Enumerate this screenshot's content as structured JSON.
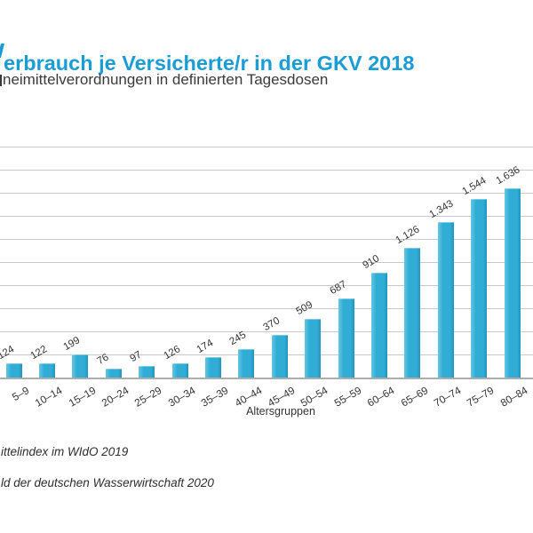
{
  "header": {
    "title": "erbrauch je Versicherte/r in der GKV 2018",
    "subtitle": "neimittelverordnungen in definierten Tagesdosen"
  },
  "chart_data": {
    "type": "bar",
    "title": "erbrauch je Versicherte/r in der GKV 2018",
    "subtitle": "neimittelverordnungen in definierten Tagesdosen",
    "categories": [
      "5–9",
      "10–14",
      "15–19",
      "20–24",
      "25–29",
      "30–34",
      "35–39",
      "40–44",
      "45–49",
      "50–54",
      "55–59",
      "60–64",
      "65–69",
      "70–74",
      "75–79",
      "80–84"
    ],
    "values": [
      124,
      122,
      199,
      76,
      97,
      126,
      174,
      245,
      370,
      509,
      687,
      910,
      1126,
      1343,
      1544,
      1636
    ],
    "value_labels": [
      "124",
      "122",
      "199",
      "76",
      "97",
      "126",
      "174",
      "245",
      "370",
      "509",
      "687",
      "910",
      "1.126",
      "1.343",
      "1.544",
      "1.636"
    ],
    "xlabel": "Altersgruppen",
    "ylabel": "",
    "ylim": [
      0,
      2000
    ],
    "grid_step": 200,
    "grid": true,
    "legend": false,
    "bar_color": "#31add5",
    "bar_color_light": "#66c7e2",
    "bar_color_dark": "#1f95bf",
    "grid_color": "#c9c9c9",
    "axis_color": "#adadad"
  },
  "footer": {
    "line1": "ittelindex im WIdO 2019",
    "line2": "ld der deutschen Wasserwirtschaft 2020"
  }
}
